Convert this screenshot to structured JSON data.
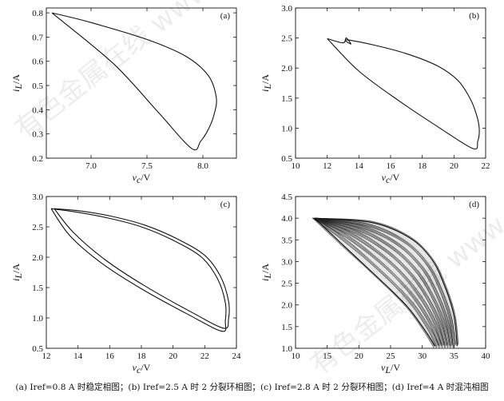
{
  "watermark": "有色金属在线  www.cnnmpl.com",
  "caption": "(a) Iref=0.8 A 时稳定相图；(b) Iref=2.5 A 时 2 分裂环相图；(c) Iref=2.8 A 时 2 分裂环相图；(d) Iref=4 A 时混沌相图",
  "chart_data": [
    {
      "type": "line",
      "panel": "(a)",
      "xlabel": "vc/V",
      "ylabel": "iL/A",
      "xlim": [
        6.6,
        8.3
      ],
      "ylim": [
        0.2,
        0.82
      ],
      "x_ticks": [
        7.0,
        7.5,
        8.0
      ],
      "y_ticks": [
        0.2,
        0.3,
        0.4,
        0.5,
        0.6,
        0.7,
        0.8
      ],
      "series": [
        {
          "x": [
            6.65,
            7.0,
            7.5,
            7.85,
            8.05,
            8.12,
            8.1,
            8.05,
            7.98,
            7.9,
            7.6,
            7.2,
            6.65
          ],
          "y": [
            0.8,
            0.76,
            0.69,
            0.62,
            0.54,
            0.45,
            0.38,
            0.32,
            0.27,
            0.24,
            0.39,
            0.59,
            0.8
          ]
        }
      ]
    },
    {
      "type": "line",
      "panel": "(b)",
      "xlabel": "vc/V",
      "ylabel": "iL/A",
      "xlim": [
        10,
        22
      ],
      "ylim": [
        0.5,
        3.0
      ],
      "x_ticks": [
        10,
        12,
        14,
        16,
        18,
        20,
        22
      ],
      "y_ticks": [
        0.5,
        1.0,
        1.5,
        2.0,
        2.5,
        3.0
      ],
      "series": [
        {
          "x": [
            12.0,
            13.0,
            13.2,
            13.5,
            13.2,
            15.0,
            17.0,
            19.0,
            20.3,
            21.1,
            21.5,
            21.6,
            21.5,
            21.2,
            19.0,
            16.5,
            14.0,
            12.0
          ],
          "y": [
            2.49,
            2.42,
            2.5,
            2.4,
            2.47,
            2.38,
            2.24,
            2.03,
            1.78,
            1.45,
            1.15,
            0.95,
            0.78,
            0.66,
            1.02,
            1.46,
            1.95,
            2.49
          ]
        }
      ]
    },
    {
      "type": "line",
      "panel": "(c)",
      "xlabel": "vc/V",
      "ylabel": "iL/A",
      "xlim": [
        12,
        24
      ],
      "ylim": [
        0.5,
        3.0
      ],
      "x_ticks": [
        12,
        14,
        16,
        18,
        20,
        22,
        24
      ],
      "y_ticks": [
        0.5,
        1.0,
        1.5,
        2.0,
        2.5,
        3.0
      ],
      "series": [
        {
          "x": [
            12.3,
            14.0,
            16.0,
            18.0,
            20.0,
            21.8,
            22.8,
            23.3,
            23.3,
            23.1,
            21.0,
            18.0,
            15.5,
            13.5,
            12.3
          ],
          "y": [
            2.8,
            2.74,
            2.64,
            2.5,
            2.28,
            2.0,
            1.65,
            1.25,
            0.95,
            0.78,
            1.05,
            1.48,
            1.9,
            2.35,
            2.8
          ]
        },
        {
          "x": [
            12.5,
            14.2,
            16.2,
            18.2,
            20.2,
            22.0,
            23.0,
            23.5,
            23.5,
            23.2,
            21.2,
            18.2,
            15.7,
            13.7,
            12.5
          ],
          "y": [
            2.8,
            2.76,
            2.67,
            2.53,
            2.31,
            2.03,
            1.68,
            1.28,
            0.98,
            0.83,
            1.09,
            1.53,
            1.96,
            2.41,
            2.8
          ]
        }
      ]
    },
    {
      "type": "line",
      "panel": "(d)",
      "xlabel": "vL/V",
      "ylabel": "iL/A",
      "xlim": [
        10,
        40
      ],
      "ylim": [
        1.0,
        4.5
      ],
      "x_ticks": [
        10,
        15,
        20,
        25,
        30,
        35,
        40
      ],
      "y_ticks": [
        1.0,
        1.5,
        2.0,
        2.5,
        3.0,
        3.5,
        4.0,
        4.5
      ],
      "regime": "chaotic",
      "series": [
        {
          "x": [
            13.0,
            22.0,
            28.0,
            31.5,
            33.5,
            35.0,
            35.5
          ],
          "y": [
            4.0,
            3.9,
            3.55,
            3.05,
            2.45,
            1.75,
            1.05
          ]
        },
        {
          "x": [
            13.0,
            17.0,
            21.0,
            25.0,
            28.0,
            30.5,
            32.0
          ],
          "y": [
            4.0,
            3.45,
            2.9,
            2.35,
            1.9,
            1.4,
            1.05
          ]
        }
      ]
    }
  ]
}
